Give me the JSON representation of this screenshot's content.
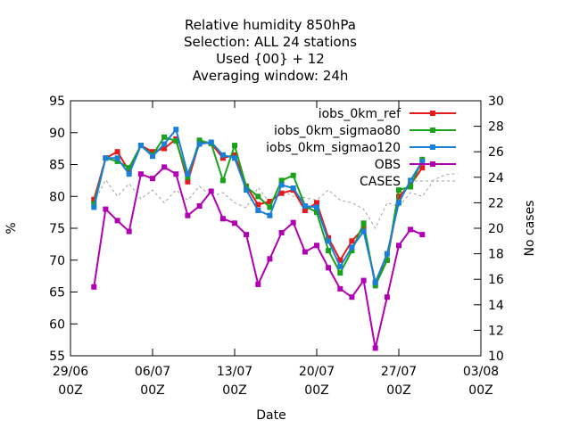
{
  "chart_data": {
    "type": "line",
    "title_lines": [
      "Relative humidity 850hPa",
      "Selection: ALL      24 stations",
      "Used {00} + 12",
      "Averaging window: 24h"
    ],
    "xlabel": "Date",
    "ylabel": "%",
    "y2label": "No cases",
    "x_ticks": [
      {
        "day": 0,
        "line1": "29/06",
        "line2": "00Z"
      },
      {
        "day": 7,
        "line1": "06/07",
        "line2": "00Z"
      },
      {
        "day": 14,
        "line1": "13/07",
        "line2": "00Z"
      },
      {
        "day": 21,
        "line1": "20/07",
        "line2": "00Z"
      },
      {
        "day": 28,
        "line1": "27/07",
        "line2": "00Z"
      },
      {
        "day": 35,
        "line1": "03/08",
        "line2": "00Z"
      }
    ],
    "x_unit": "days after 29/06 00Z",
    "xlim": [
      0,
      35
    ],
    "ylim": [
      55,
      95
    ],
    "y_ticks": [
      55,
      60,
      65,
      70,
      75,
      80,
      85,
      90,
      95
    ],
    "y2lim": [
      10,
      30
    ],
    "y2_ticks": [
      10,
      12,
      14,
      16,
      18,
      20,
      22,
      24,
      26,
      28,
      30
    ],
    "legend_position": "top-right",
    "series": [
      {
        "name": "iobs_0km_ref",
        "color": "#e41a1c",
        "axis": "y1",
        "style": "line-points",
        "x": [
          2,
          3,
          4,
          5,
          6,
          7,
          8,
          9,
          10,
          11,
          12,
          13,
          14,
          15,
          16,
          17,
          18,
          19,
          20,
          21,
          22,
          23,
          24,
          25,
          26,
          27,
          28,
          29,
          30,
          31
        ],
        "y": [
          79.5,
          86,
          87,
          84,
          88,
          87,
          87.5,
          89,
          82.3,
          88.5,
          88.3,
          86,
          86.5,
          81.6,
          78.7,
          79.2,
          80.5,
          81,
          77.8,
          79,
          73.5,
          70,
          73,
          75,
          66.5,
          70,
          80,
          81.8,
          84.5,
          null
        ]
      },
      {
        "name": "iobs_0km_sigmao80",
        "color": "#1aa31a",
        "axis": "y1",
        "style": "line-points",
        "x": [
          2,
          3,
          4,
          5,
          6,
          7,
          8,
          9,
          10,
          11,
          12,
          13,
          14,
          15,
          16,
          17,
          18,
          19,
          20,
          21,
          22,
          23,
          24,
          25,
          26,
          27,
          28,
          29,
          30,
          31
        ],
        "y": [
          78.8,
          86,
          85.5,
          84.5,
          88,
          86.5,
          89.3,
          88.7,
          83,
          88.8,
          88.3,
          82.5,
          88,
          81.5,
          80,
          78.3,
          82.5,
          83.3,
          78.5,
          77.5,
          71.5,
          68,
          71.5,
          75.8,
          66,
          70,
          81,
          81.5,
          85.8,
          null
        ]
      },
      {
        "name": "iobs_0km_sigmao120",
        "color": "#1a7fd6",
        "axis": "y1",
        "style": "line-points",
        "x": [
          2,
          3,
          4,
          5,
          6,
          7,
          8,
          9,
          10,
          11,
          12,
          13,
          14,
          15,
          16,
          17,
          18,
          19,
          20,
          21,
          22,
          23,
          24,
          25,
          26,
          27,
          28,
          29,
          30,
          31
        ],
        "y": [
          78.3,
          86,
          86,
          83.5,
          88,
          86.3,
          88.2,
          90.5,
          83.5,
          88.2,
          88.5,
          86.5,
          86,
          81,
          77.8,
          77,
          81.8,
          81.3,
          78.5,
          78.3,
          73,
          69,
          72,
          74.5,
          66.5,
          71,
          79,
          82.5,
          85.5,
          null
        ]
      },
      {
        "name": "OBS",
        "color": "#b100b1",
        "axis": "y1",
        "style": "line-points",
        "x": [
          2,
          3,
          4,
          5,
          6,
          7,
          8,
          9,
          10,
          11,
          12,
          13,
          14,
          15,
          16,
          17,
          18,
          19,
          20,
          21,
          22,
          23,
          24,
          25,
          26,
          27,
          28,
          29,
          30,
          31
        ],
        "y": [
          65.8,
          78,
          76.2,
          74.5,
          83.5,
          82.8,
          84.6,
          83.5,
          77,
          78.5,
          80.8,
          76.5,
          75.8,
          74,
          66.2,
          70.2,
          74.3,
          75.9,
          71.3,
          72.3,
          68.8,
          65.5,
          64.2,
          66.8,
          56.2,
          64.2,
          72.3,
          74.8,
          74,
          null
        ]
      },
      {
        "name": "CASES",
        "color": "#a0a0a0",
        "axis": "y2",
        "style": "dashed",
        "x": [
          2,
          3,
          4,
          5,
          6,
          7,
          8,
          9,
          10,
          11,
          12,
          13,
          14,
          15,
          16,
          17,
          18,
          19,
          20,
          21,
          22,
          23,
          24,
          25,
          26,
          27,
          28,
          29,
          30,
          31,
          32,
          33
        ],
        "y": [
          22,
          23.8,
          22.5,
          23.5,
          22.3,
          23,
          22,
          23,
          22.2,
          23.3,
          22.5,
          22.8,
          22,
          21.6,
          23.2,
          22,
          23,
          22.5,
          22.4,
          22.2,
          23,
          22.2,
          22,
          21.5,
          20,
          22,
          21.7,
          22.8,
          22.5,
          23.8,
          24.2,
          24.3
        ]
      }
    ]
  }
}
